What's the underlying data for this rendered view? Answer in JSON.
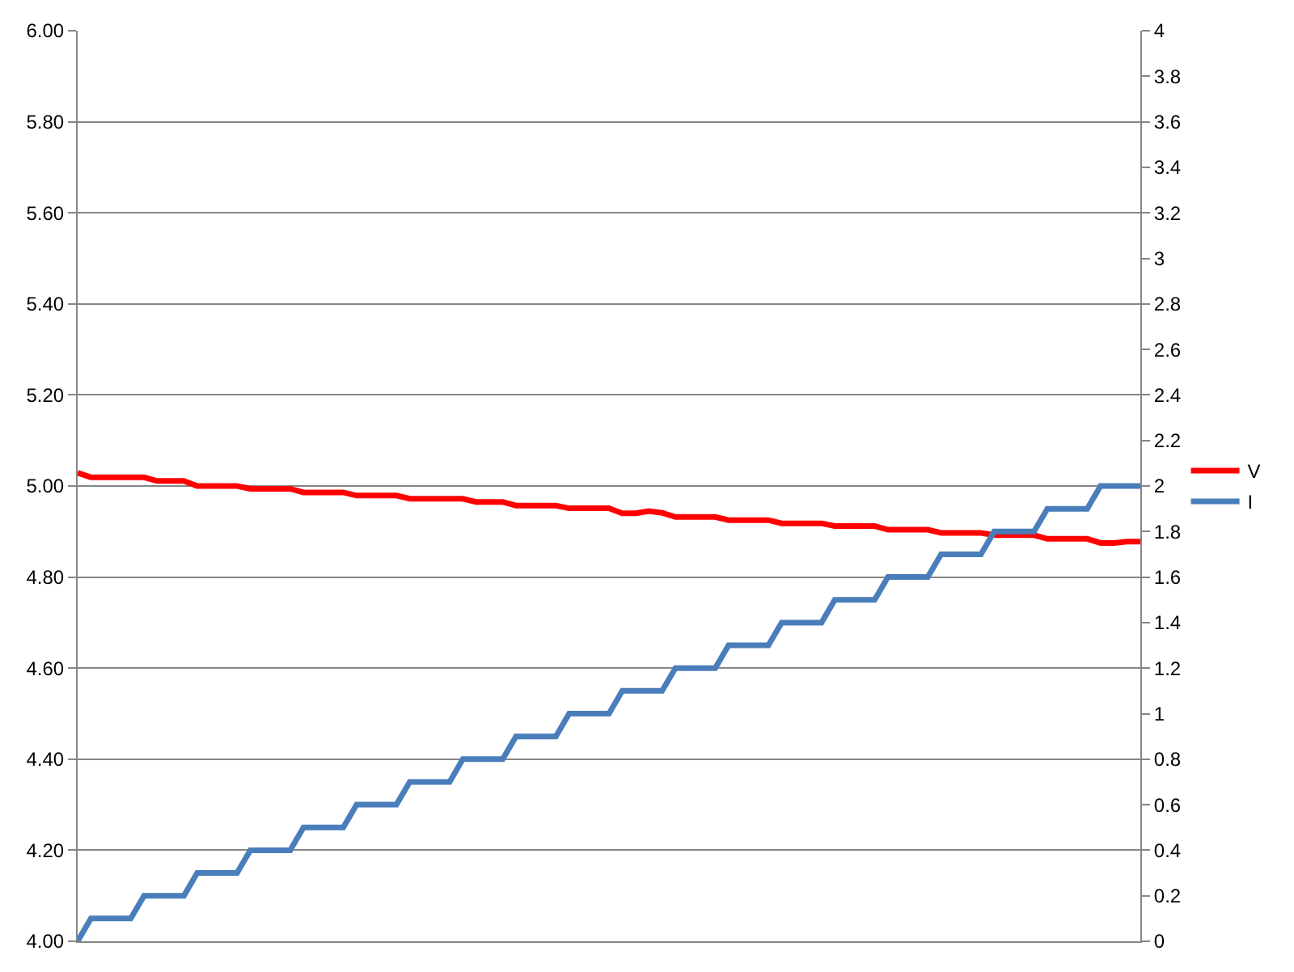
{
  "chart_data": {
    "type": "line",
    "categories": [
      null,
      null,
      null,
      null,
      null,
      null,
      null,
      null,
      null,
      null,
      null,
      null,
      null,
      null,
      null,
      null,
      null,
      null,
      null,
      null,
      null,
      null,
      null,
      null,
      null,
      null,
      null,
      null,
      null,
      null,
      null,
      null,
      null,
      null,
      null,
      null,
      null,
      null,
      null,
      null,
      null,
      null,
      null,
      null,
      null,
      null,
      null,
      null,
      null,
      null,
      null,
      null,
      null,
      null,
      null,
      null,
      null,
      null,
      null,
      null,
      null,
      null,
      null,
      null,
      null,
      null,
      null,
      null,
      null,
      null,
      null,
      null,
      null,
      null,
      null,
      null,
      null,
      null,
      null,
      null,
      null
    ],
    "series": [
      {
        "name": "V",
        "color": "#ff0000",
        "values": [
          5.029,
          5.019,
          5.019,
          5.019,
          5.019,
          5.019,
          5.011,
          5.011,
          5.011,
          5.0,
          5.0,
          5.0,
          5.0,
          4.994,
          4.994,
          4.994,
          4.994,
          4.986,
          4.986,
          4.986,
          4.986,
          4.979,
          4.979,
          4.979,
          4.979,
          4.972,
          4.972,
          4.972,
          4.972,
          4.972,
          4.965,
          4.965,
          4.965,
          4.957,
          4.957,
          4.957,
          4.957,
          4.951,
          4.951,
          4.951,
          4.951,
          4.94,
          4.94,
          4.945,
          4.941,
          4.932,
          4.932,
          4.932,
          4.932,
          4.925,
          4.925,
          4.925,
          4.925,
          4.918,
          4.918,
          4.918,
          4.918,
          4.912,
          4.912,
          4.912,
          4.912,
          4.904,
          4.904,
          4.904,
          4.904,
          4.897,
          4.897,
          4.897,
          4.897,
          4.892,
          4.892,
          4.892,
          4.892,
          4.884,
          4.884,
          4.884,
          4.884,
          4.875,
          4.875,
          4.878,
          4.878
        ]
      },
      {
        "name": "I",
        "color": "#4a7ebb",
        "axis": "y2",
        "values": [
          0,
          0.1,
          0.1,
          0.1,
          0.1,
          0.2,
          0.2,
          0.2,
          0.2,
          0.3,
          0.3,
          0.3,
          0.3,
          0.4,
          0.4,
          0.4,
          0.4,
          0.5,
          0.5,
          0.5,
          0.5,
          0.6,
          0.6,
          0.6,
          0.6,
          0.7,
          0.7,
          0.7,
          0.7,
          0.8,
          0.8,
          0.8,
          0.8,
          0.9,
          0.9,
          0.9,
          0.9,
          1.0,
          1.0,
          1.0,
          1.0,
          1.1,
          1.1,
          1.1,
          1.1,
          1.2,
          1.2,
          1.2,
          1.2,
          1.3,
          1.3,
          1.3,
          1.3,
          1.4,
          1.4,
          1.4,
          1.4,
          1.5,
          1.5,
          1.5,
          1.5,
          1.6,
          1.6,
          1.6,
          1.6,
          1.7,
          1.7,
          1.7,
          1.7,
          1.8,
          1.8,
          1.8,
          1.8,
          1.9,
          1.9,
          1.9,
          1.9,
          2.0,
          2.0,
          2.0,
          2.0
        ]
      }
    ],
    "ylim": [
      4,
      6
    ],
    "yticks": [
      {
        "value": 4,
        "label": "4.00"
      },
      {
        "value": 4.2,
        "label": "4.20"
      },
      {
        "value": 4.4,
        "label": "4.40"
      },
      {
        "value": 4.6,
        "label": "4.60"
      },
      {
        "value": 4.8,
        "label": "4.80"
      },
      {
        "value": 5,
        "label": "5.00"
      },
      {
        "value": 5.2,
        "label": "5.20"
      },
      {
        "value": 5.4,
        "label": "5.40"
      },
      {
        "value": 5.6,
        "label": "5.60"
      },
      {
        "value": 5.8,
        "label": "5.80"
      },
      {
        "value": 6,
        "label": "6.00"
      }
    ],
    "y2lim": [
      0,
      4
    ],
    "y2ticks": [
      0,
      0.2,
      0.4,
      0.6,
      0.8,
      1,
      1.2,
      1.4,
      1.6,
      1.8,
      2,
      2.2,
      2.4,
      2.6,
      2.8,
      3,
      3.2,
      3.4,
      3.6,
      3.8,
      4
    ],
    "grid": "y",
    "legend": "right",
    "line_style": "solid",
    "marker": "none"
  }
}
